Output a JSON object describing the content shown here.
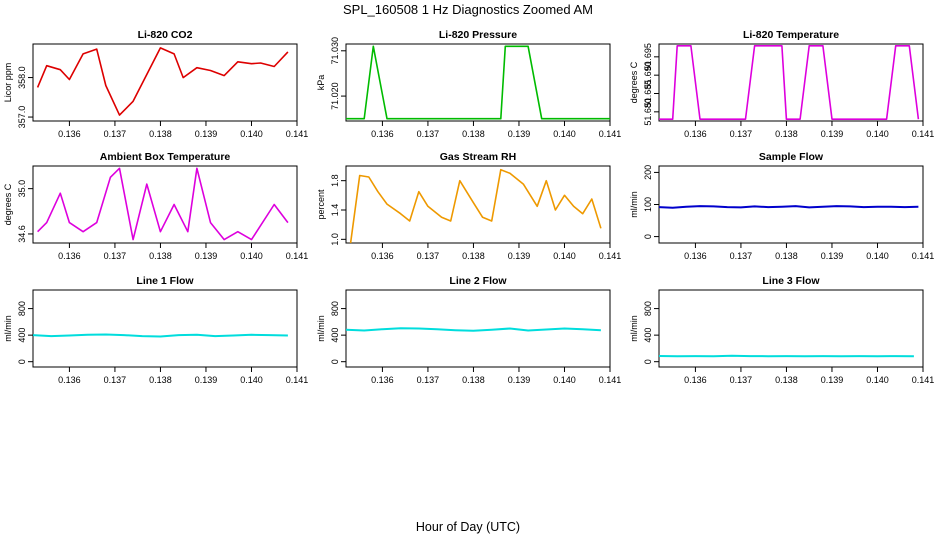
{
  "figure": {
    "title": "SPL_160508  1 Hz Diagnostics Zoomed AM",
    "xlabel": "Hour of Day (UTC)"
  },
  "chart_data": [
    {
      "type": "line",
      "title": "Li-820 CO2",
      "ylabel": "Licor ppm",
      "color": "#dd0000",
      "xlim": [
        0.1352,
        0.141
      ],
      "ylim": [
        356.9,
        358.85
      ],
      "xticks": [
        0.136,
        0.137,
        0.138,
        0.139,
        0.14,
        0.141
      ],
      "xtick_labels": [
        "0.136",
        "0.137",
        "0.138",
        "0.139",
        "0.140",
        "0.141"
      ],
      "yticks": [
        357.0,
        358.0
      ],
      "ytick_labels": [
        "357.0",
        "358.0"
      ],
      "series": [
        {
          "name": "CO2",
          "x": [
            0.1353,
            0.1355,
            0.1358,
            0.136,
            0.1363,
            0.1366,
            0.1368,
            0.1371,
            0.1374,
            0.138,
            0.1383,
            0.1385,
            0.1388,
            0.1391,
            0.1394,
            0.1397,
            0.14,
            0.1402,
            0.1405,
            0.1408
          ],
          "values": [
            357.75,
            358.3,
            358.2,
            357.95,
            358.6,
            358.72,
            357.8,
            357.05,
            357.4,
            358.75,
            358.6,
            358.0,
            358.25,
            358.18,
            358.05,
            358.4,
            358.35,
            358.37,
            358.28,
            358.65
          ]
        }
      ]
    },
    {
      "type": "line",
      "title": "Li-820 Pressure",
      "ylabel": "kPa",
      "color": "#00bb00",
      "xlim": [
        0.1352,
        0.141
      ],
      "ylim": [
        71.0145,
        71.0315
      ],
      "xticks": [
        0.136,
        0.137,
        0.138,
        0.139,
        0.14,
        0.141
      ],
      "xtick_labels": [
        "0.136",
        "0.137",
        "0.138",
        "0.139",
        "0.140",
        "0.141"
      ],
      "yticks": [
        71.02,
        71.03
      ],
      "ytick_labels": [
        "71.020",
        "71.030"
      ],
      "series": [
        {
          "name": "Pressure",
          "x": [
            0.1352,
            0.1356,
            0.1358,
            0.1361,
            0.1386,
            0.1387,
            0.1392,
            0.1395,
            0.141
          ],
          "values": [
            71.015,
            71.015,
            71.031,
            71.015,
            71.015,
            71.031,
            71.031,
            71.015,
            71.015
          ]
        }
      ]
    },
    {
      "type": "line",
      "title": "Li-820 Temperature",
      "ylabel": "degrees C",
      "color": "#dd00dd",
      "xlim": [
        0.1352,
        0.141
      ],
      "ylim": [
        51.6775,
        51.6985
      ],
      "xticks": [
        0.136,
        0.137,
        0.138,
        0.139,
        0.14,
        0.141
      ],
      "xtick_labels": [
        "0.136",
        "0.137",
        "0.138",
        "0.139",
        "0.140",
        "0.141"
      ],
      "yticks": [
        51.68,
        51.685,
        51.69,
        51.695
      ],
      "ytick_labels": [
        "51.680",
        "51.685",
        "51.690",
        "51.695"
      ],
      "series": [
        {
          "name": "Temperature",
          "x": [
            0.1352,
            0.1355,
            0.1356,
            0.1359,
            0.1361,
            0.1371,
            0.1373,
            0.1379,
            0.138,
            0.1383,
            0.1385,
            0.1388,
            0.139,
            0.1393,
            0.1395,
            0.1402,
            0.1404,
            0.1407,
            0.1409
          ],
          "values": [
            51.678,
            51.678,
            51.698,
            51.698,
            51.678,
            51.678,
            51.698,
            51.698,
            51.678,
            51.678,
            51.698,
            51.698,
            51.678,
            51.678,
            51.678,
            51.678,
            51.698,
            51.698,
            51.678
          ]
        }
      ]
    },
    {
      "type": "line",
      "title": "Ambient Box Temperature",
      "ylabel": "degrees C",
      "color": "#dd00dd",
      "xlim": [
        0.1352,
        0.141
      ],
      "ylim": [
        34.52,
        35.2
      ],
      "xticks": [
        0.136,
        0.137,
        0.138,
        0.139,
        0.14,
        0.141
      ],
      "xtick_labels": [
        "0.136",
        "0.137",
        "0.138",
        "0.139",
        "0.140",
        "0.141"
      ],
      "yticks": [
        34.6,
        35.0
      ],
      "ytick_labels": [
        "34.6",
        "35.0"
      ],
      "series": [
        {
          "name": "Ambient",
          "x": [
            0.1353,
            0.1355,
            0.1358,
            0.136,
            0.1363,
            0.1366,
            0.1369,
            0.1371,
            0.1374,
            0.1377,
            0.138,
            0.1383,
            0.1386,
            0.1388,
            0.1391,
            0.1394,
            0.1397,
            0.14,
            0.1405,
            0.1408
          ],
          "values": [
            34.62,
            34.7,
            34.96,
            34.7,
            34.62,
            34.7,
            35.1,
            35.18,
            34.55,
            35.04,
            34.62,
            34.86,
            34.62,
            35.18,
            34.7,
            34.55,
            34.62,
            34.55,
            34.86,
            34.7
          ]
        }
      ]
    },
    {
      "type": "line",
      "title": "Gas Stream RH",
      "ylabel": "percent",
      "color": "#ee9900",
      "xlim": [
        0.1352,
        0.141
      ],
      "ylim": [
        0.95,
        2.0
      ],
      "xticks": [
        0.136,
        0.137,
        0.138,
        0.139,
        0.14,
        0.141
      ],
      "xtick_labels": [
        "0.136",
        "0.137",
        "0.138",
        "0.139",
        "0.140",
        "0.141"
      ],
      "yticks": [
        1.0,
        1.4,
        1.8
      ],
      "ytick_labels": [
        "1.0",
        "1.4",
        "1.8"
      ],
      "series": [
        {
          "name": "RH",
          "x": [
            0.1353,
            0.1355,
            0.1357,
            0.1359,
            0.1361,
            0.1364,
            0.1366,
            0.1368,
            0.137,
            0.1373,
            0.1375,
            0.1377,
            0.138,
            0.1382,
            0.1384,
            0.1386,
            0.1388,
            0.1391,
            0.1394,
            0.1396,
            0.1398,
            0.14,
            0.1402,
            0.1404,
            0.1406,
            0.1408
          ],
          "values": [
            0.95,
            1.87,
            1.85,
            1.65,
            1.48,
            1.35,
            1.25,
            1.65,
            1.45,
            1.3,
            1.25,
            1.8,
            1.5,
            1.3,
            1.25,
            1.95,
            1.9,
            1.75,
            1.45,
            1.8,
            1.4,
            1.6,
            1.45,
            1.35,
            1.55,
            1.15
          ]
        }
      ]
    },
    {
      "type": "line",
      "title": "Sample Flow",
      "ylabel": "ml/min",
      "color": "#0000cc",
      "xlim": [
        0.1352,
        0.141
      ],
      "ylim": [
        -20,
        220
      ],
      "xticks": [
        0.136,
        0.137,
        0.138,
        0.139,
        0.14,
        0.141
      ],
      "xtick_labels": [
        "0.136",
        "0.137",
        "0.138",
        "0.139",
        "0.140",
        "0.141"
      ],
      "yticks": [
        0,
        100,
        200
      ],
      "ytick_labels": [
        "0",
        "100",
        "200"
      ],
      "series": [
        {
          "name": "Sample Flow",
          "x": [
            0.1352,
            0.1355,
            0.1358,
            0.1361,
            0.1364,
            0.1367,
            0.137,
            0.1373,
            0.1376,
            0.1379,
            0.1382,
            0.1385,
            0.1388,
            0.1391,
            0.1394,
            0.1397,
            0.14,
            0.1403,
            0.1406,
            0.1409
          ],
          "values": [
            92,
            90,
            93,
            95,
            94,
            92,
            91,
            94,
            92,
            93,
            95,
            91,
            93,
            95,
            94,
            92,
            93,
            93,
            92,
            93
          ]
        }
      ]
    },
    {
      "type": "line",
      "title": "Line 1 Flow",
      "ylabel": "ml/min",
      "color": "#00dddd",
      "xlim": [
        0.1352,
        0.141
      ],
      "ylim": [
        -80,
        1080
      ],
      "xticks": [
        0.136,
        0.137,
        0.138,
        0.139,
        0.14,
        0.141
      ],
      "xtick_labels": [
        "0.136",
        "0.137",
        "0.138",
        "0.139",
        "0.140",
        "0.141"
      ],
      "yticks": [
        0,
        400,
        800
      ],
      "ytick_labels": [
        "0",
        "400",
        "800"
      ],
      "series": [
        {
          "name": "Line 1",
          "x": [
            0.1352,
            0.1356,
            0.136,
            0.1364,
            0.1368,
            0.1372,
            0.1376,
            0.138,
            0.1384,
            0.1388,
            0.1392,
            0.1396,
            0.14,
            0.1404,
            0.1408
          ],
          "values": [
            400,
            385,
            395,
            405,
            410,
            400,
            385,
            380,
            400,
            405,
            385,
            395,
            405,
            400,
            395
          ]
        }
      ]
    },
    {
      "type": "line",
      "title": "Line 2 Flow",
      "ylabel": "ml/min",
      "color": "#00dddd",
      "xlim": [
        0.1352,
        0.141
      ],
      "ylim": [
        -80,
        1080
      ],
      "xticks": [
        0.136,
        0.137,
        0.138,
        0.139,
        0.14,
        0.141
      ],
      "xtick_labels": [
        "0.136",
        "0.137",
        "0.138",
        "0.139",
        "0.140",
        "0.141"
      ],
      "yticks": [
        0,
        400,
        800
      ],
      "ytick_labels": [
        "0",
        "400",
        "800"
      ],
      "series": [
        {
          "name": "Line 2",
          "x": [
            0.1352,
            0.1356,
            0.136,
            0.1364,
            0.1368,
            0.1372,
            0.1376,
            0.138,
            0.1384,
            0.1388,
            0.1392,
            0.1396,
            0.14,
            0.1404,
            0.1408
          ],
          "values": [
            480,
            470,
            490,
            505,
            500,
            490,
            475,
            465,
            480,
            500,
            470,
            485,
            500,
            490,
            475
          ]
        }
      ]
    },
    {
      "type": "line",
      "title": "Line 3 Flow",
      "ylabel": "ml/min",
      "color": "#00dddd",
      "xlim": [
        0.1352,
        0.141
      ],
      "ylim": [
        -80,
        1080
      ],
      "xticks": [
        0.136,
        0.137,
        0.138,
        0.139,
        0.14,
        0.141
      ],
      "xtick_labels": [
        "0.136",
        "0.137",
        "0.138",
        "0.139",
        "0.140",
        "0.141"
      ],
      "yticks": [
        0,
        400,
        800
      ],
      "ytick_labels": [
        "0",
        "400",
        "800"
      ],
      "series": [
        {
          "name": "Line 3",
          "x": [
            0.1352,
            0.1356,
            0.136,
            0.1364,
            0.1368,
            0.1372,
            0.1376,
            0.138,
            0.1384,
            0.1388,
            0.1392,
            0.1396,
            0.14,
            0.1404,
            0.1408
          ],
          "values": [
            85,
            82,
            84,
            83,
            90,
            84,
            83,
            84,
            82,
            84,
            83,
            84,
            83,
            84,
            83
          ]
        }
      ]
    }
  ]
}
